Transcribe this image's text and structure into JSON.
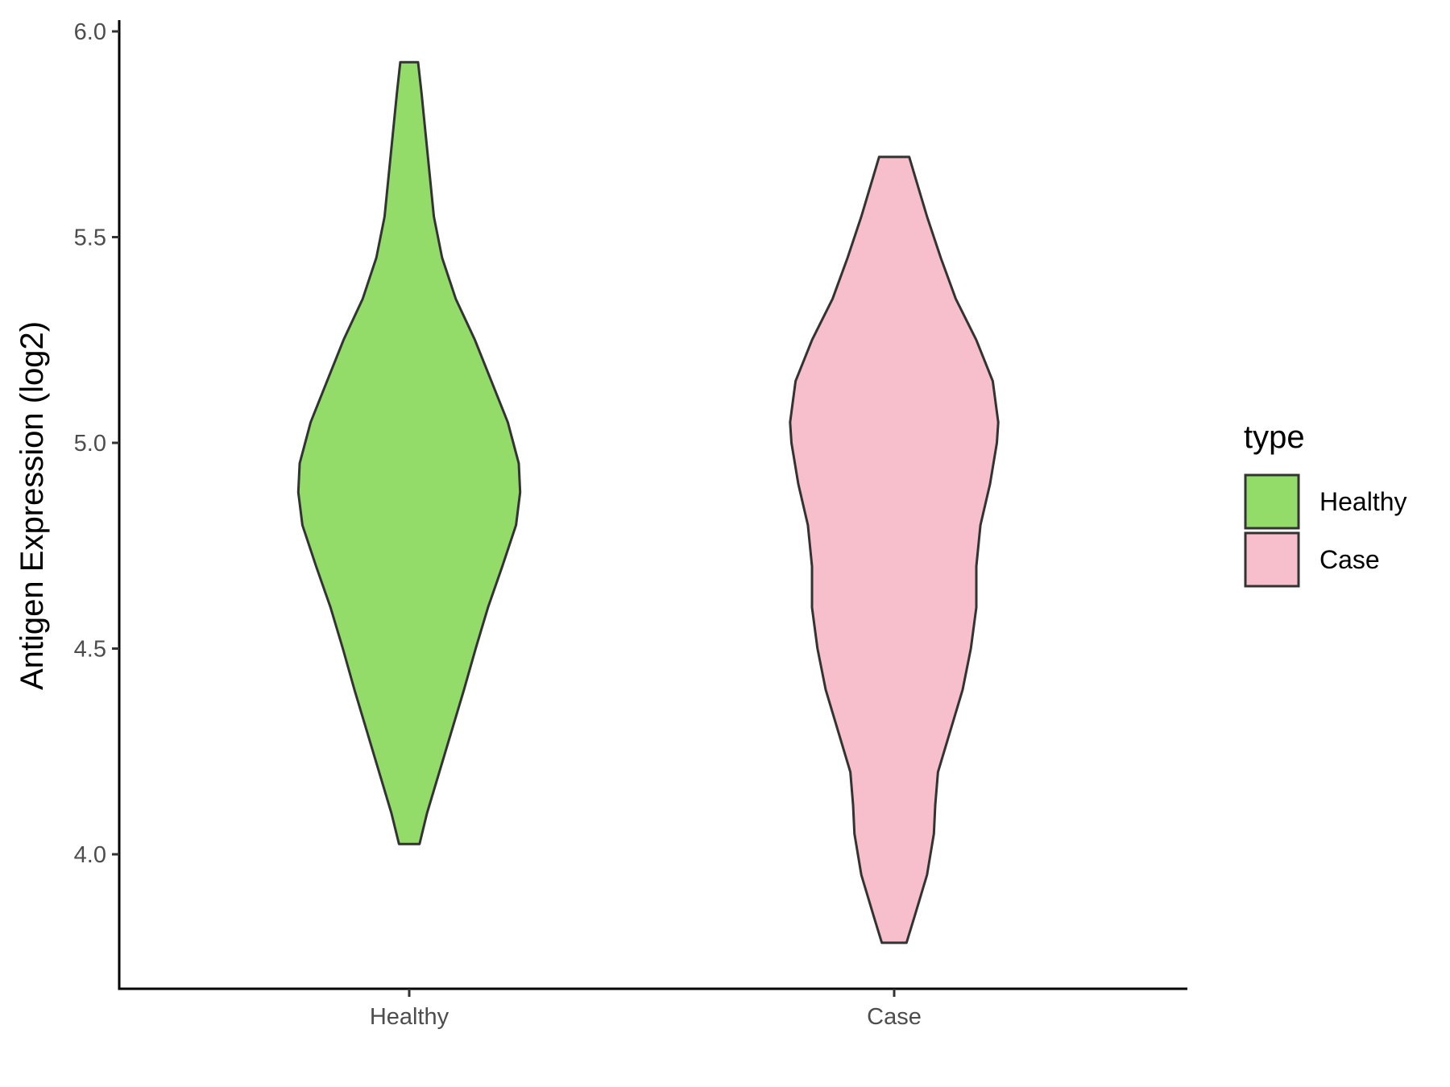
{
  "chart_data": {
    "type": "violin",
    "title": "",
    "xlabel": "",
    "ylabel": "Antigen Expression (log2)",
    "ylim": [
      3.71,
      6.03
    ],
    "yticks": [
      "4.0",
      "4.5",
      "5.0",
      "5.5",
      "6.0"
    ],
    "categories": [
      "Healthy",
      "Case"
    ],
    "grid": false,
    "legend": {
      "title": "type",
      "position": "right",
      "entries": [
        {
          "label": "Healthy",
          "color": "#93DC6A"
        },
        {
          "label": "Case",
          "color": "#F7BFCB"
        }
      ]
    },
    "series": [
      {
        "category": "Healthy",
        "color": "#93DC6A",
        "min": 4.025,
        "max": 5.925,
        "max_density_at": 4.88,
        "profile": [
          [
            4.025,
            0.075
          ],
          [
            4.1,
            0.13
          ],
          [
            4.2,
            0.22
          ],
          [
            4.3,
            0.31
          ],
          [
            4.4,
            0.4
          ],
          [
            4.5,
            0.485
          ],
          [
            4.6,
            0.575
          ],
          [
            4.7,
            0.68
          ],
          [
            4.8,
            0.78
          ],
          [
            4.88,
            0.81
          ],
          [
            4.95,
            0.8
          ],
          [
            5.05,
            0.72
          ],
          [
            5.15,
            0.6
          ],
          [
            5.25,
            0.48
          ],
          [
            5.35,
            0.34
          ],
          [
            5.45,
            0.24
          ],
          [
            5.55,
            0.18
          ],
          [
            5.65,
            0.15
          ],
          [
            5.75,
            0.12
          ],
          [
            5.85,
            0.09
          ],
          [
            5.925,
            0.065
          ]
        ]
      },
      {
        "category": "Case",
        "color": "#F7BFCB",
        "min": 3.785,
        "max": 5.695,
        "max_density_at": 5.05,
        "profile": [
          [
            3.785,
            0.09
          ],
          [
            3.85,
            0.15
          ],
          [
            3.95,
            0.24
          ],
          [
            4.05,
            0.29
          ],
          [
            4.12,
            0.3
          ],
          [
            4.2,
            0.32
          ],
          [
            4.3,
            0.41
          ],
          [
            4.4,
            0.5
          ],
          [
            4.5,
            0.56
          ],
          [
            4.6,
            0.6
          ],
          [
            4.7,
            0.6
          ],
          [
            4.8,
            0.63
          ],
          [
            4.9,
            0.7
          ],
          [
            5.0,
            0.75
          ],
          [
            5.05,
            0.76
          ],
          [
            5.15,
            0.72
          ],
          [
            5.25,
            0.6
          ],
          [
            5.35,
            0.45
          ],
          [
            5.45,
            0.34
          ],
          [
            5.55,
            0.24
          ],
          [
            5.65,
            0.15
          ],
          [
            5.695,
            0.11
          ]
        ]
      }
    ]
  }
}
